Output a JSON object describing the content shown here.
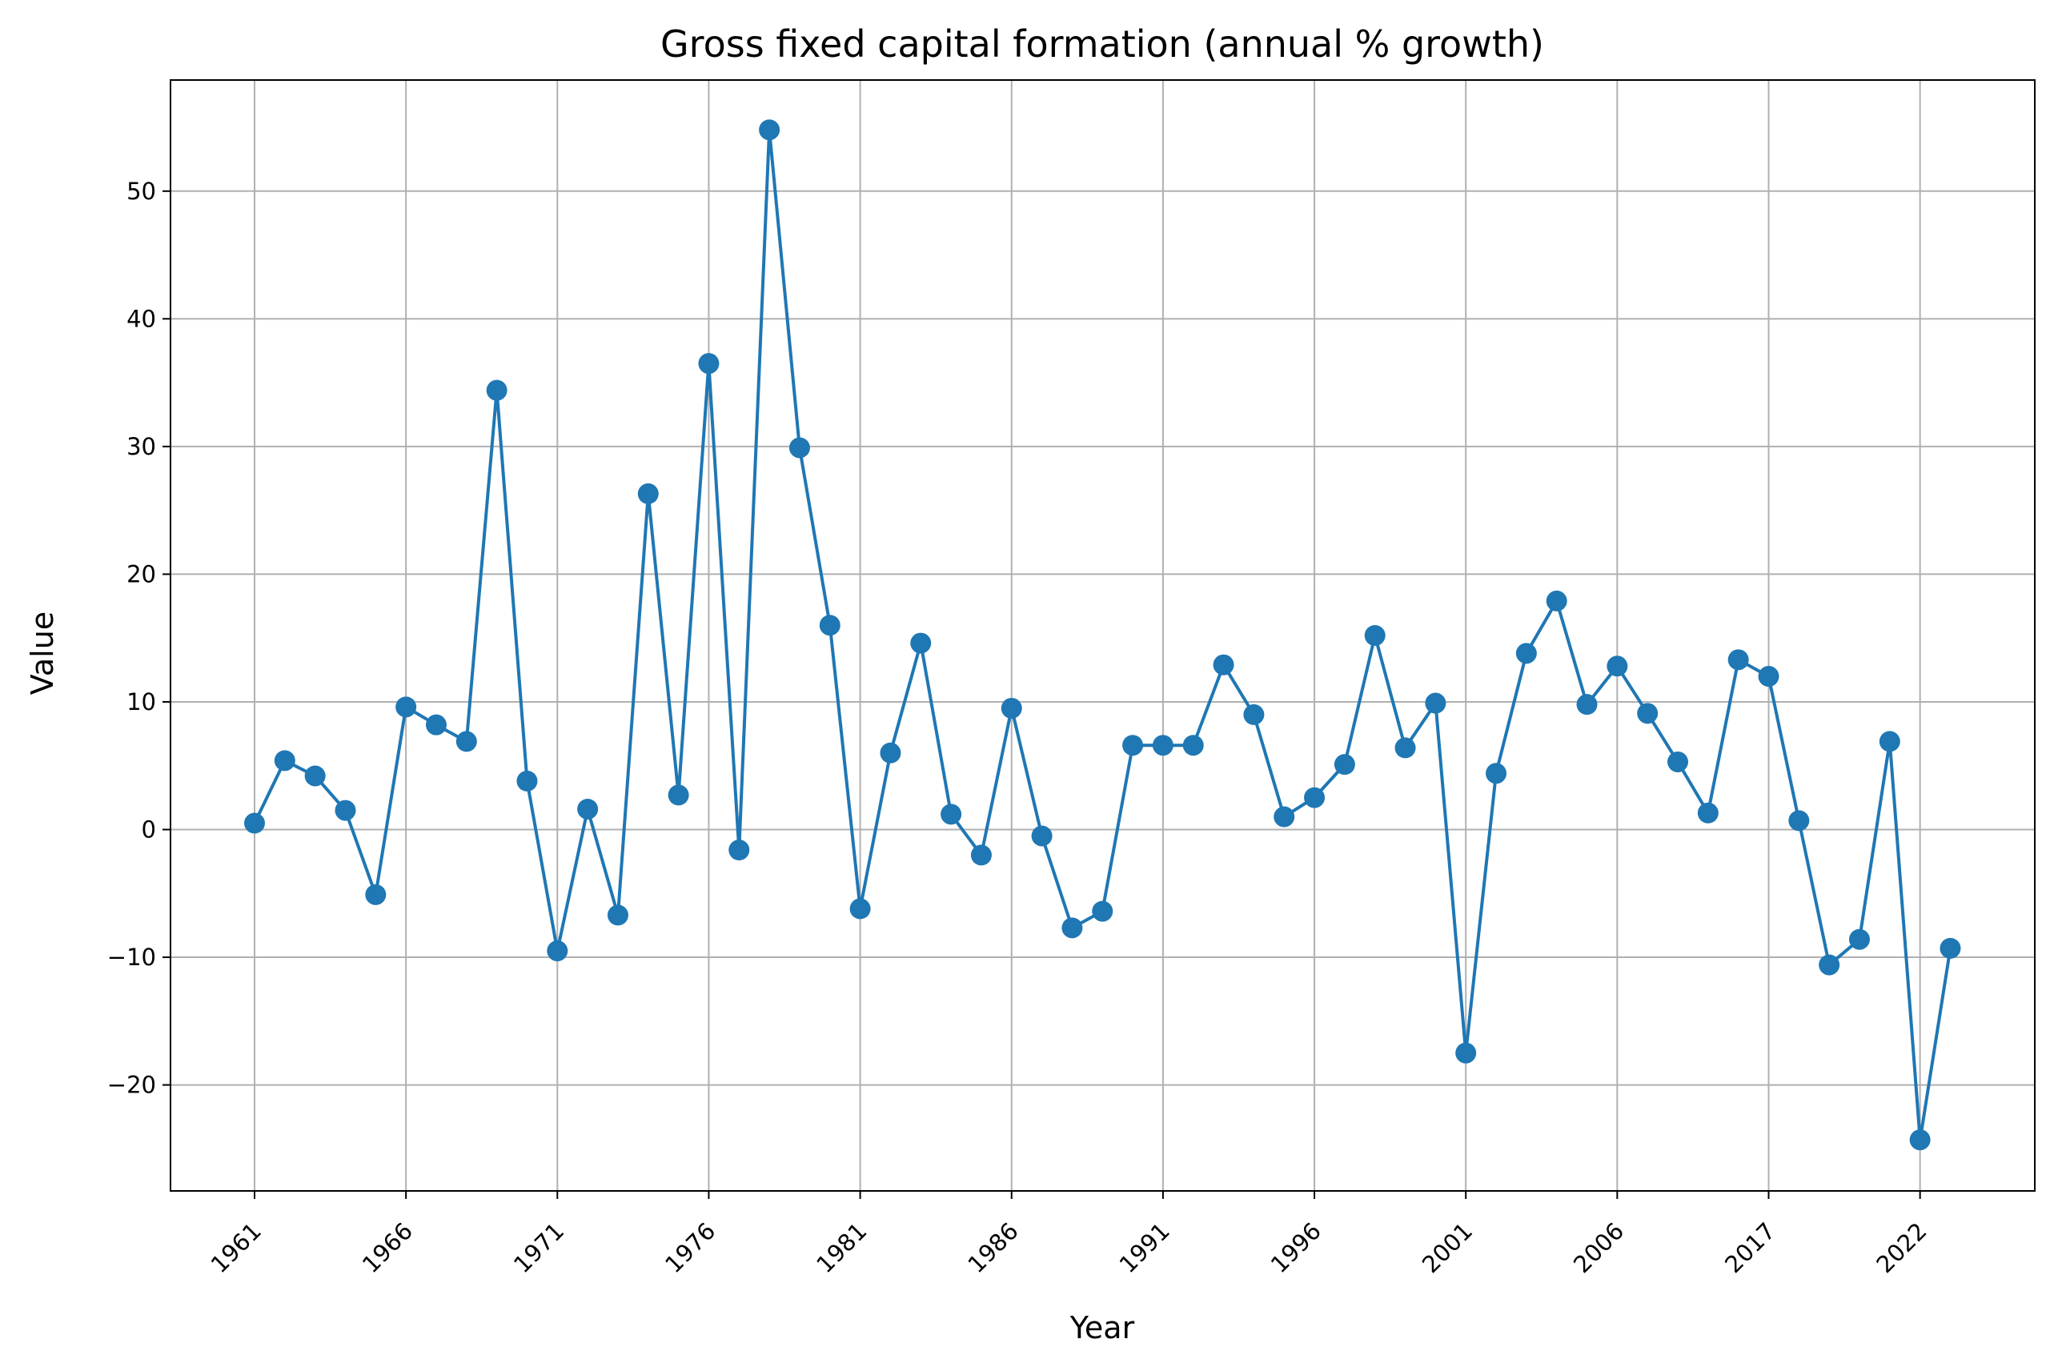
{
  "chart_data": {
    "type": "line",
    "title": "Gross fixed capital formation (annual % growth)",
    "xlabel": "Year",
    "ylabel": "Value",
    "grid": true,
    "marker": "circle",
    "color": "#1f77b4",
    "ylim": [
      -28.3,
      58.7
    ],
    "yticks": [
      -20,
      -10,
      0,
      10,
      20,
      30,
      40,
      50
    ],
    "ytick_labels": [
      "−20",
      "−10",
      "0",
      "10",
      "20",
      "30",
      "40",
      "50"
    ],
    "xtick_labels": [
      "1961",
      "1966",
      "1971",
      "1976",
      "1981",
      "1986",
      "1991",
      "1996",
      "2001",
      "2006",
      "2017",
      "2022"
    ],
    "xtick_index": [
      0,
      5,
      10,
      15,
      20,
      25,
      30,
      35,
      40,
      45,
      50,
      55
    ],
    "values": [
      0.5,
      5.4,
      4.2,
      1.5,
      -5.1,
      9.6,
      8.2,
      6.9,
      34.4,
      3.8,
      -9.5,
      1.6,
      -6.7,
      26.3,
      2.7,
      36.5,
      -1.6,
      54.8,
      29.9,
      16.0,
      -6.2,
      6.0,
      14.6,
      1.2,
      -2.0,
      9.5,
      -0.5,
      -7.7,
      -6.4,
      6.6,
      6.6,
      6.6,
      12.9,
      9.0,
      1.0,
      2.5,
      5.1,
      15.2,
      6.4,
      9.9,
      -17.5,
      4.4,
      13.8,
      17.9,
      9.8,
      12.8,
      9.1,
      5.3,
      1.3,
      13.3,
      12.0,
      0.7,
      -10.6,
      -8.6,
      6.9,
      -24.3,
      -9.3
    ]
  }
}
